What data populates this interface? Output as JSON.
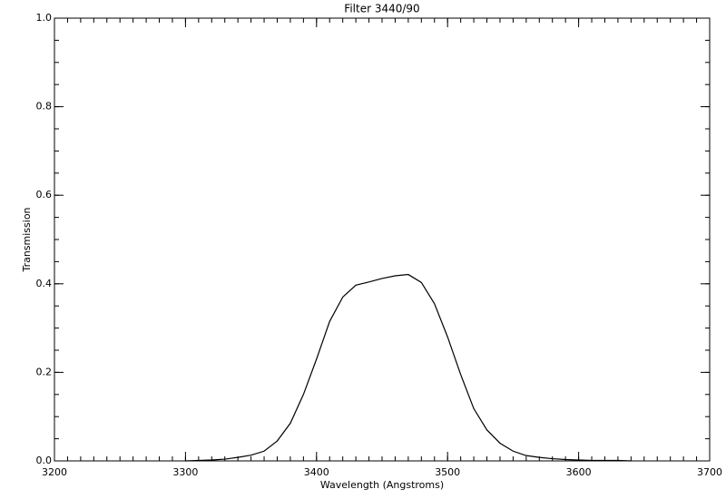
{
  "chart_data": {
    "type": "line",
    "title": "Filter 3440/90",
    "x_label": "Wavelength (Angstroms)",
    "y_label": "Transmission",
    "x": [
      3300,
      3310,
      3320,
      3330,
      3340,
      3350,
      3360,
      3370,
      3380,
      3390,
      3400,
      3410,
      3420,
      3430,
      3440,
      3450,
      3460,
      3470,
      3480,
      3490,
      3500,
      3510,
      3520,
      3530,
      3540,
      3550,
      3560,
      3570,
      3580,
      3590,
      3600,
      3610,
      3620,
      3630,
      3640
    ],
    "series": [
      {
        "color": "#000000",
        "values": [
          0.0,
          0.001,
          0.002,
          0.004,
          0.008,
          0.013,
          0.022,
          0.045,
          0.085,
          0.15,
          0.23,
          0.315,
          0.37,
          0.397,
          0.404,
          0.412,
          0.418,
          0.421,
          0.403,
          0.355,
          0.28,
          0.195,
          0.118,
          0.07,
          0.04,
          0.022,
          0.012,
          0.008,
          0.005,
          0.003,
          0.002,
          0.001,
          0.001,
          0.001,
          0.0
        ]
      }
    ],
    "xlim": [
      3200,
      3700
    ],
    "xticks": [
      3200,
      3300,
      3400,
      3500,
      3600,
      3700
    ],
    "xminor": 10,
    "ylim": [
      0,
      1
    ],
    "yticks": [
      {
        "value": 0,
        "label": "0.0"
      },
      0.2,
      0.4,
      0.6,
      0.8,
      {
        "value": 1,
        "label": "1.0"
      }
    ],
    "yminor": 0.05,
    "grid": false
  }
}
